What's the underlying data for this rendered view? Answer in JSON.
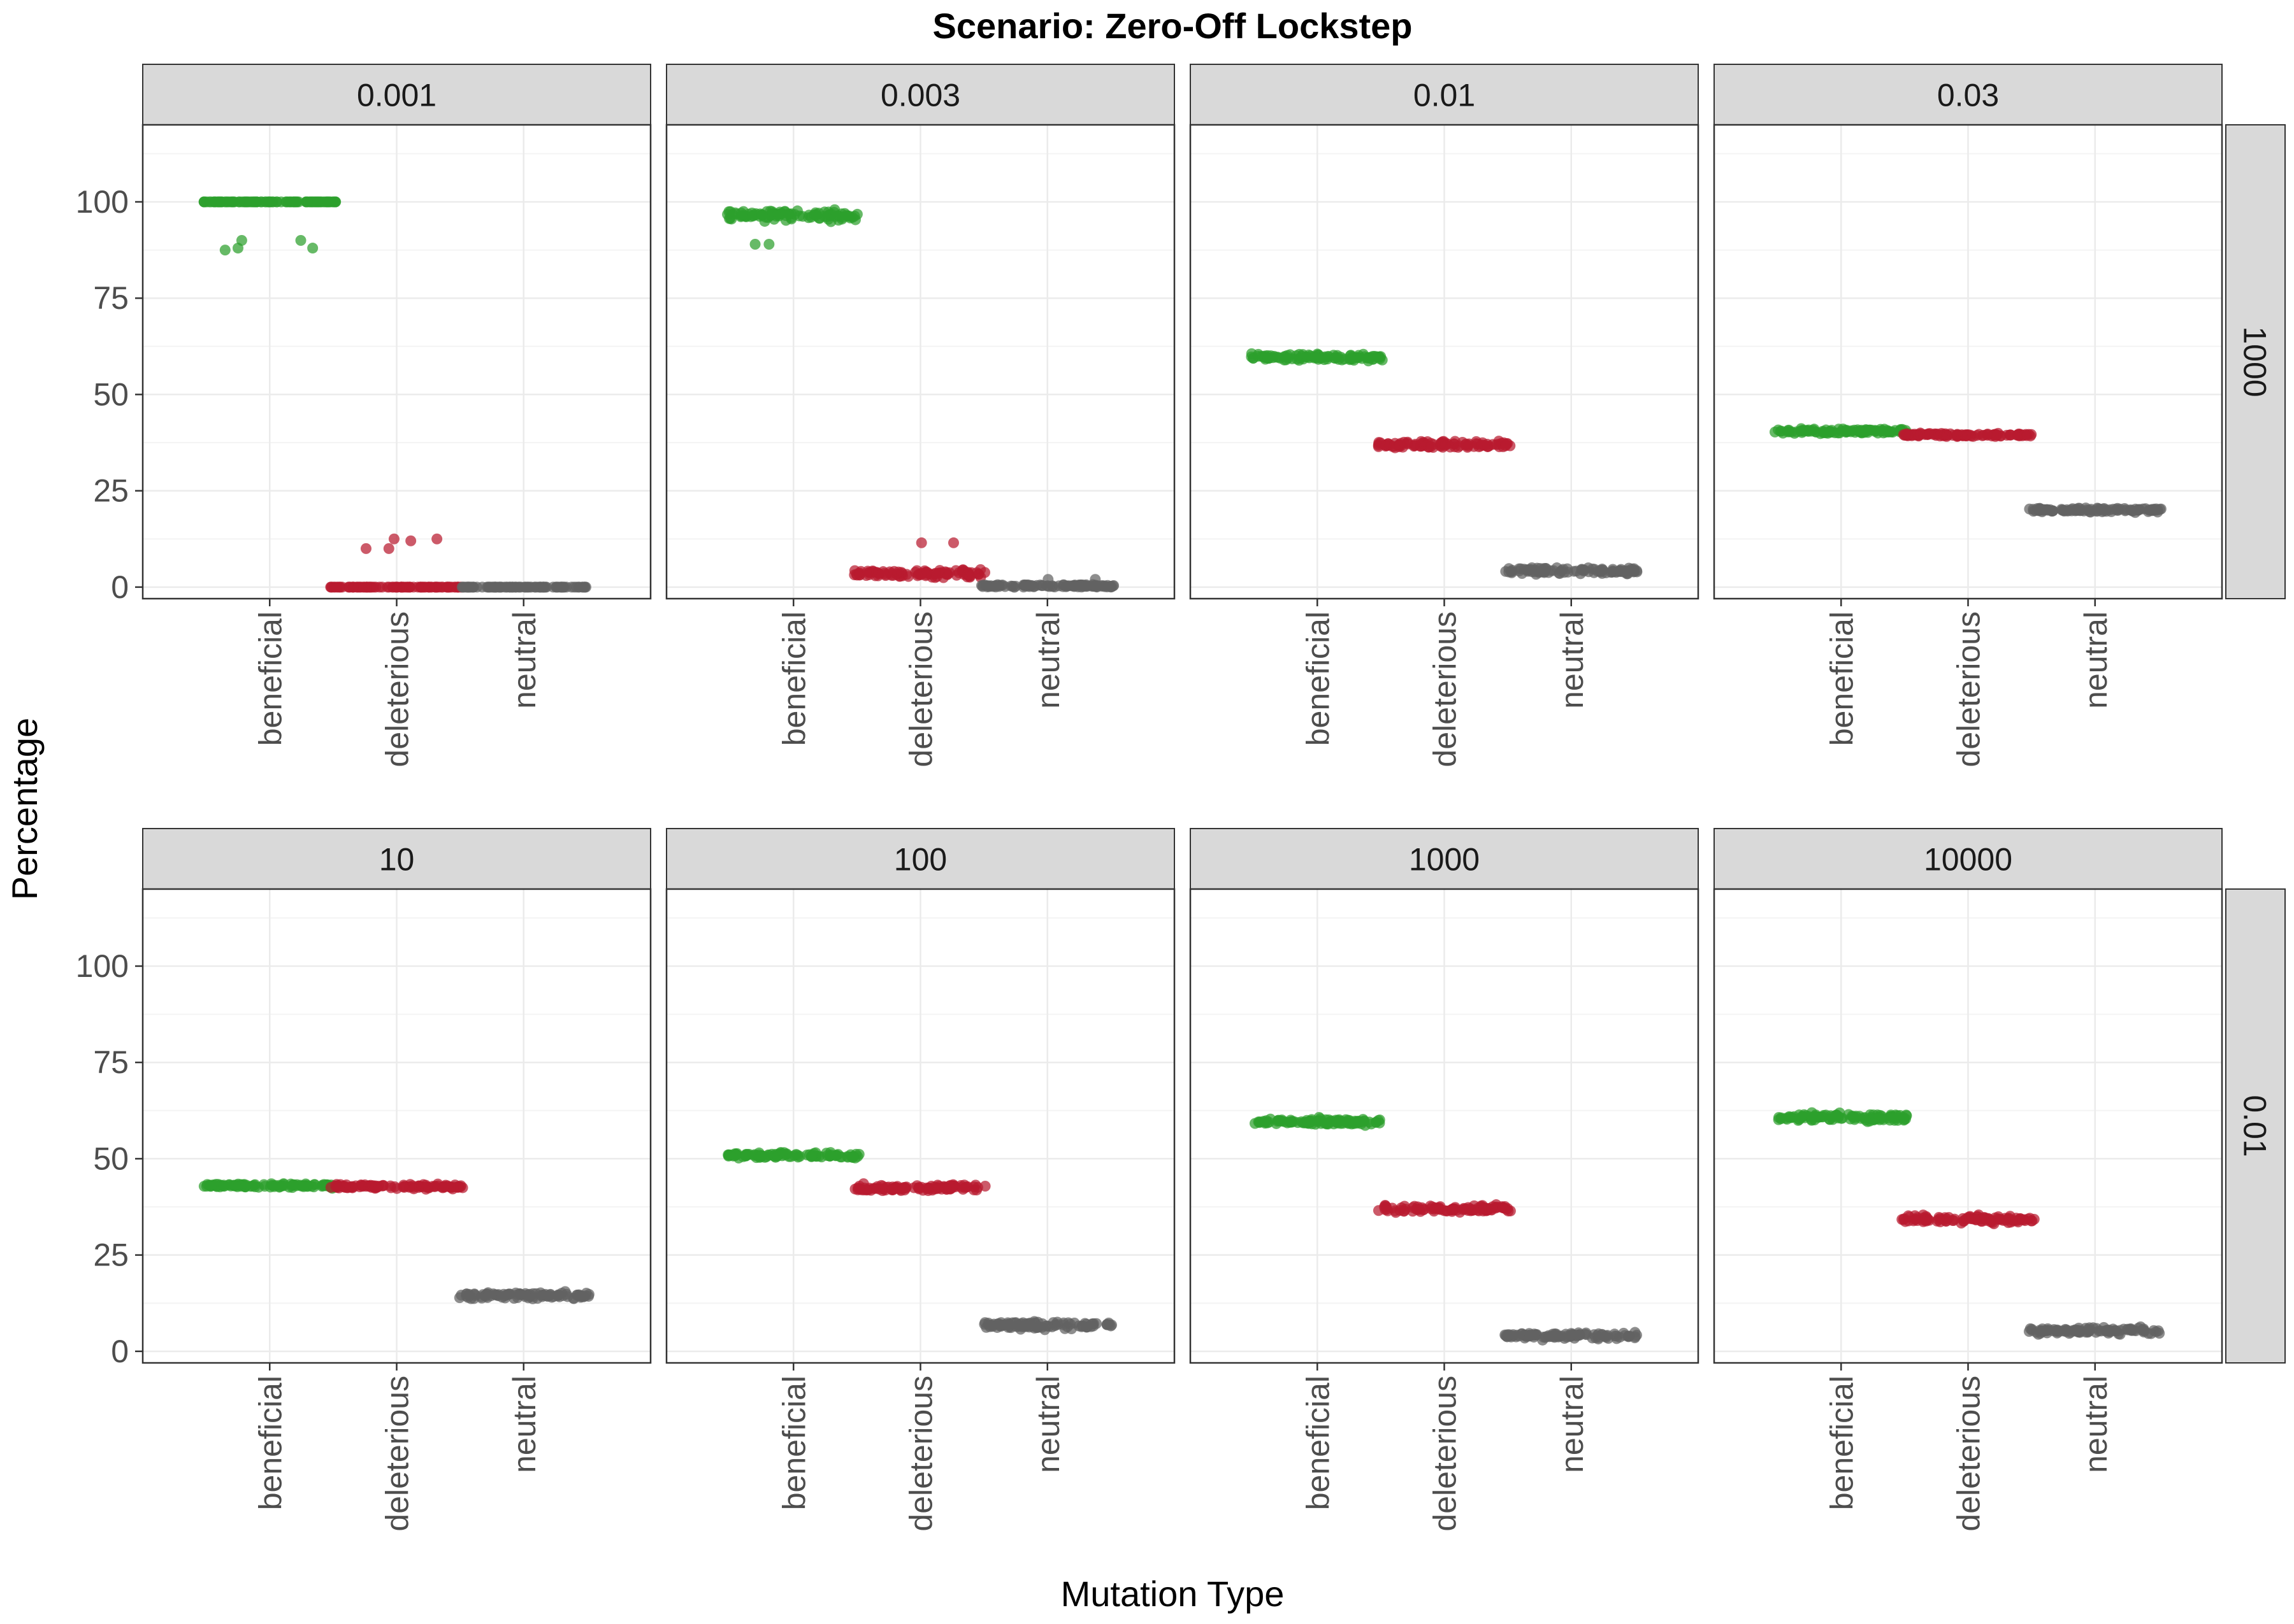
{
  "title": "Scenario: Zero-Off Lockstep",
  "xlabel": "Mutation Type",
  "ylabel": "Percentage",
  "colors": {
    "beneficial": "#2ca02c",
    "deleterious": "#b81a2f",
    "neutral": "#636363",
    "strip_fill": "#d9d9d9",
    "grid_major": "#ebebeb",
    "grid_minor": "#f4f4f4",
    "axis_text": "#4d4d4d"
  },
  "chart_data": {
    "type": "scatter",
    "jitter": true,
    "categories": [
      "beneficial",
      "deleterious",
      "neutral"
    ],
    "ylim": [
      -3,
      120
    ],
    "yticks": [
      0,
      25,
      50,
      75,
      100
    ],
    "grid": true,
    "row_labels": [
      "1000",
      "0.01"
    ],
    "panels": [
      {
        "col_label": "0.001",
        "row_label": "1000",
        "series": [
          {
            "name": "beneficial",
            "center": 100,
            "spread": 0,
            "outliers": [
              90,
              88,
              87.5,
              90,
              88
            ]
          },
          {
            "name": "deleterious",
            "center": 0,
            "spread": 0,
            "outliers": [
              12.5,
              12.5,
              10,
              10,
              12
            ]
          },
          {
            "name": "neutral",
            "center": 0,
            "spread": 0,
            "outliers": []
          }
        ]
      },
      {
        "col_label": "0.003",
        "row_label": "1000",
        "series": [
          {
            "name": "beneficial",
            "center": 96.5,
            "spread": 1.8,
            "outliers": [
              89,
              89
            ]
          },
          {
            "name": "deleterious",
            "center": 3.5,
            "spread": 1.5,
            "outliers": [
              11.5,
              11.5
            ]
          },
          {
            "name": "neutral",
            "center": 0.3,
            "spread": 0.5,
            "outliers": [
              2,
              2
            ]
          }
        ]
      },
      {
        "col_label": "0.01",
        "row_label": "1000",
        "series": [
          {
            "name": "beneficial",
            "center": 59.5,
            "spread": 1.3,
            "outliers": []
          },
          {
            "name": "deleterious",
            "center": 37,
            "spread": 1.3,
            "outliers": []
          },
          {
            "name": "neutral",
            "center": 4.2,
            "spread": 1.2,
            "outliers": []
          }
        ]
      },
      {
        "col_label": "0.03",
        "row_label": "1000",
        "series": [
          {
            "name": "beneficial",
            "center": 40.5,
            "spread": 0.8,
            "outliers": []
          },
          {
            "name": "deleterious",
            "center": 39.5,
            "spread": 0.6,
            "outliers": []
          },
          {
            "name": "neutral",
            "center": 20,
            "spread": 0.9,
            "outliers": []
          }
        ]
      },
      {
        "col_label": "10",
        "row_label": "0.01",
        "series": [
          {
            "name": "beneficial",
            "center": 43,
            "spread": 0.8,
            "outliers": []
          },
          {
            "name": "deleterious",
            "center": 42.8,
            "spread": 0.8,
            "outliers": []
          },
          {
            "name": "neutral",
            "center": 14.5,
            "spread": 1.1,
            "outliers": []
          }
        ]
      },
      {
        "col_label": "100",
        "row_label": "0.01",
        "series": [
          {
            "name": "beneficial",
            "center": 50.8,
            "spread": 1.1,
            "outliers": []
          },
          {
            "name": "deleterious",
            "center": 42.5,
            "spread": 1.2,
            "outliers": []
          },
          {
            "name": "neutral",
            "center": 6.8,
            "spread": 1.3,
            "outliers": []
          }
        ]
      },
      {
        "col_label": "1000",
        "row_label": "0.01",
        "series": [
          {
            "name": "beneficial",
            "center": 59.5,
            "spread": 1.3,
            "outliers": []
          },
          {
            "name": "deleterious",
            "center": 37,
            "spread": 1.3,
            "outliers": []
          },
          {
            "name": "neutral",
            "center": 4,
            "spread": 1.2,
            "outliers": []
          }
        ]
      },
      {
        "col_label": "10000",
        "row_label": "0.01",
        "series": [
          {
            "name": "beneficial",
            "center": 60.8,
            "spread": 1.4,
            "outliers": []
          },
          {
            "name": "deleterious",
            "center": 34.3,
            "spread": 1.4,
            "outliers": []
          },
          {
            "name": "neutral",
            "center": 5.3,
            "spread": 1.3,
            "outliers": []
          }
        ]
      }
    ]
  }
}
